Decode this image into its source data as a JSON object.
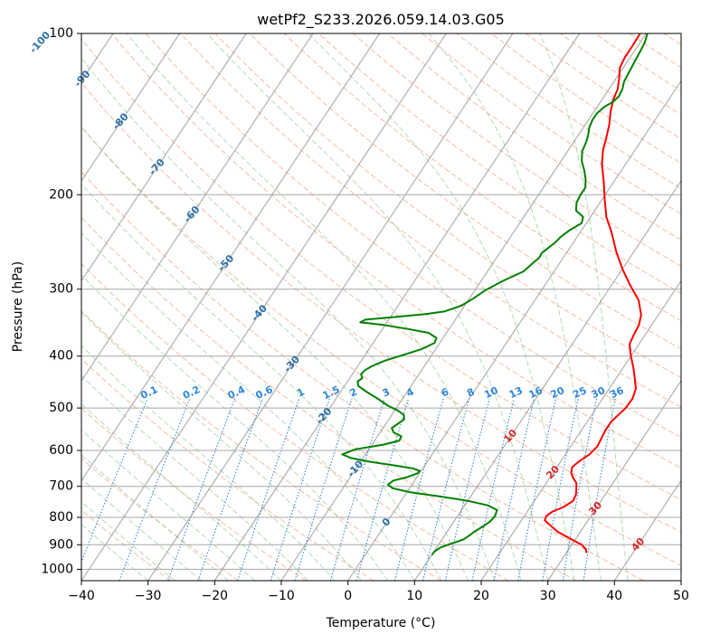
{
  "chart_data": {
    "type": "skew-t",
    "title": "wetPf2_S233.2026.059.14.03.G05",
    "xlabel": "Temperature (°C)",
    "ylabel": "Pressure (hPa)",
    "xlim": [
      -40,
      50
    ],
    "ylim": [
      1050,
      100
    ],
    "y_scale": "log",
    "grid": true,
    "x_ticks": [
      -40,
      -30,
      -20,
      -10,
      0,
      10,
      20,
      30,
      40,
      50
    ],
    "y_ticks": [
      100,
      200,
      300,
      400,
      500,
      600,
      700,
      800,
      900,
      1000
    ],
    "colors": {
      "temperature": "#ff0000",
      "dewpoint": "#008000",
      "isotherm": "#a0a0a0",
      "dry_adiabat": "#f4a582",
      "moist_adiabat": "#9ad09a",
      "mixing_ratio": "#2e87d8",
      "isotherm_label": "#2a6ea6",
      "hot_isotherm_label": "#d62728"
    },
    "series": [
      {
        "name": "",
        "role": "temperature",
        "points": [
          [
            33,
            932
          ],
          [
            32.6,
            918
          ],
          [
            31.5,
            900
          ],
          [
            30,
            885
          ],
          [
            28,
            865
          ],
          [
            26.5,
            850
          ],
          [
            25,
            830
          ],
          [
            23.5,
            810
          ],
          [
            23.3,
            795
          ],
          [
            23.8,
            780
          ],
          [
            25,
            765
          ],
          [
            25.8,
            745
          ],
          [
            25.6,
            725
          ],
          [
            25,
            705
          ],
          [
            24.5,
            690
          ],
          [
            23.5,
            675
          ],
          [
            22.7,
            660
          ],
          [
            22.3,
            645
          ],
          [
            22.7,
            630
          ],
          [
            23.6,
            610
          ],
          [
            24,
            590
          ],
          [
            23.8,
            570
          ],
          [
            23.6,
            550
          ],
          [
            23.6,
            530
          ],
          [
            24,
            515
          ],
          [
            24.4,
            500
          ],
          [
            24.5,
            480
          ],
          [
            24,
            460
          ],
          [
            22.8,
            440
          ],
          [
            21.5,
            420
          ],
          [
            20,
            400
          ],
          [
            18.6,
            380
          ],
          [
            18.3,
            365
          ],
          [
            18.1,
            350
          ],
          [
            17.4,
            335
          ],
          [
            15.6,
            315
          ],
          [
            12.8,
            295
          ],
          [
            10,
            275
          ],
          [
            7.3,
            255
          ],
          [
            4.7,
            235
          ],
          [
            2.4,
            220
          ],
          [
            0.5,
            205
          ],
          [
            -1.4,
            190
          ],
          [
            -3.6,
            175
          ],
          [
            -4.8,
            165
          ],
          [
            -5.5,
            157
          ],
          [
            -6.4,
            148
          ],
          [
            -7.5,
            140
          ],
          [
            -8.3,
            133
          ],
          [
            -8.7,
            127
          ],
          [
            -9.6,
            121
          ],
          [
            -10.5,
            116
          ],
          [
            -10.8,
            111
          ],
          [
            -10.8,
            106
          ],
          [
            -10.9,
            100
          ]
        ]
      },
      {
        "name": "",
        "role": "dewpoint",
        "points": [
          [
            10,
            940
          ],
          [
            10.1,
            925
          ],
          [
            10.6,
            910
          ],
          [
            11.8,
            895
          ],
          [
            13.2,
            880
          ],
          [
            13.7,
            865
          ],
          [
            14.1,
            850
          ],
          [
            14.7,
            835
          ],
          [
            15.4,
            815
          ],
          [
            15.6,
            795
          ],
          [
            15.3,
            775
          ],
          [
            13.5,
            760
          ],
          [
            10,
            745
          ],
          [
            5,
            730
          ],
          [
            0.5,
            718
          ],
          [
            -2.5,
            706
          ],
          [
            -3.6,
            695
          ],
          [
            -3.2,
            683
          ],
          [
            -1.5,
            673
          ],
          [
            -0.3,
            662
          ],
          [
            -0.2,
            655
          ],
          [
            -1.5,
            648
          ],
          [
            -4.5,
            640
          ],
          [
            -8.5,
            630
          ],
          [
            -11.8,
            620
          ],
          [
            -13.5,
            610
          ],
          [
            -12,
            597
          ],
          [
            -8.2,
            585
          ],
          [
            -6.3,
            575
          ],
          [
            -6.4,
            565
          ],
          [
            -8,
            555
          ],
          [
            -8.7,
            545
          ],
          [
            -8.2,
            535
          ],
          [
            -7.7,
            525
          ],
          [
            -8.2,
            515
          ],
          [
            -9.6,
            505
          ],
          [
            -11.5,
            495
          ],
          [
            -13.8,
            480
          ],
          [
            -16,
            467
          ],
          [
            -17.9,
            455
          ],
          [
            -18.5,
            446
          ],
          [
            -18.1,
            440
          ],
          [
            -18.7,
            432
          ],
          [
            -18.5,
            425
          ],
          [
            -17.9,
            418
          ],
          [
            -16.5,
            408
          ],
          [
            -14.3,
            398
          ],
          [
            -12.1,
            388
          ],
          [
            -10.8,
            378
          ],
          [
            -11,
            370
          ],
          [
            -12.7,
            362
          ],
          [
            -16.2,
            356
          ],
          [
            -20.2,
            350
          ],
          [
            -24,
            346
          ],
          [
            -23.5,
            342
          ],
          [
            -19.2,
            338
          ],
          [
            -15,
            334
          ],
          [
            -12.4,
            330
          ],
          [
            -10.5,
            322
          ],
          [
            -9.4,
            312
          ],
          [
            -8.5,
            302
          ],
          [
            -6.8,
            290
          ],
          [
            -4.6,
            278
          ],
          [
            -4,
            268
          ],
          [
            -3.6,
            262
          ],
          [
            -3.7,
            257
          ],
          [
            -3.3,
            252
          ],
          [
            -2.7,
            245
          ],
          [
            -2.5,
            240
          ],
          [
            -1.8,
            233
          ],
          [
            -0.7,
            226
          ],
          [
            -1.1,
            220
          ],
          [
            -2.8,
            214
          ],
          [
            -3.5,
            207
          ],
          [
            -3.7,
            200
          ],
          [
            -3.7,
            194
          ],
          [
            -4.5,
            187
          ],
          [
            -5.6,
            180
          ],
          [
            -6.9,
            173
          ],
          [
            -7.8,
            166
          ],
          [
            -8.1,
            160
          ],
          [
            -8.5,
            155
          ],
          [
            -9.1,
            150
          ],
          [
            -9.4,
            145
          ],
          [
            -9.4,
            141
          ],
          [
            -8.9,
            137
          ],
          [
            -8.1,
            134
          ],
          [
            -7.8,
            131
          ],
          [
            -8,
            127
          ],
          [
            -8.5,
            123
          ],
          [
            -8.7,
            118
          ],
          [
            -8.9,
            113
          ],
          [
            -9.1,
            108
          ],
          [
            -9.3,
            104
          ],
          [
            -9.8,
            100
          ]
        ]
      }
    ],
    "isotherm_labels": [
      "-100",
      "-90",
      "-80",
      "-70",
      "-60",
      "-50",
      "-40",
      "-30",
      "-20",
      "-10",
      "0",
      "10",
      "20",
      "30",
      "40"
    ],
    "isotherm_label_values": [
      -100,
      -90,
      -80,
      -70,
      -60,
      -50,
      -40,
      -30,
      -20,
      -10,
      0,
      10,
      20,
      30,
      40
    ],
    "mixing_ratio_labels": [
      "0.1",
      "0.2",
      "0.4",
      "0.6",
      "1",
      "1.5",
      "2",
      "3",
      "4",
      "6",
      "8",
      "10",
      "13",
      "16",
      "20",
      "25",
      "30",
      "36"
    ],
    "mixing_ratio_values": [
      0.1,
      0.2,
      0.4,
      0.6,
      1,
      1.5,
      2,
      3,
      4,
      6,
      8,
      10,
      13,
      16,
      20,
      25,
      30,
      36
    ]
  }
}
